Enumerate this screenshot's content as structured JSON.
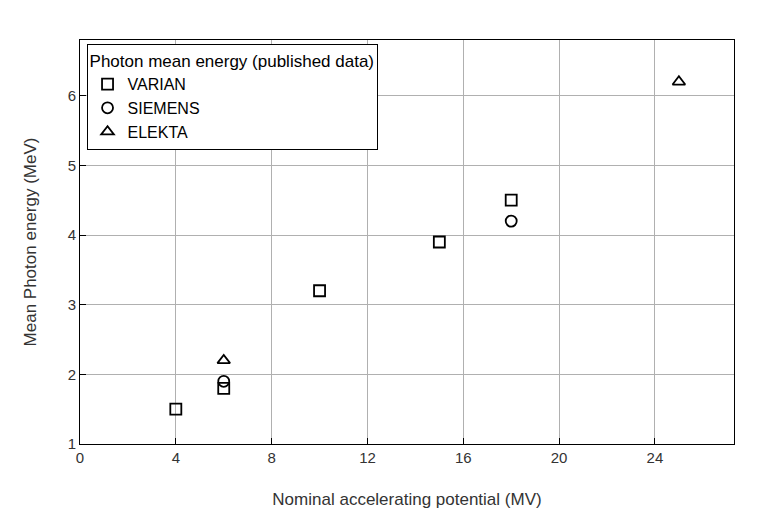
{
  "chart_data": {
    "type": "scatter",
    "x_label": "Nominal accelerating potential (MV)",
    "y_label": "Mean Photon energy (MeV)",
    "legend_title": "Photon mean energy (published data)",
    "legend": "upper left",
    "grid": true,
    "xlim": [
      0,
      27.3
    ],
    "ylim": [
      1,
      6.8
    ],
    "xticks": [
      0,
      4,
      8,
      12,
      16,
      20,
      24
    ],
    "yticks": [
      1,
      2,
      3,
      4,
      5,
      6
    ],
    "series": [
      {
        "name": "VARIAN",
        "color": "#000000",
        "marker": "square-open",
        "x": [
          4,
          6,
          10,
          15,
          18
        ],
        "values": [
          1.5,
          1.8,
          3.2,
          3.9,
          4.5
        ]
      },
      {
        "name": "SIEMENS",
        "color": "#000000",
        "marker": "circle-open",
        "x": [
          6,
          18
        ],
        "values": [
          1.9,
          4.2
        ]
      },
      {
        "name": "ELEKTA",
        "color": "#000000",
        "marker": "triangle-up-open",
        "x": [
          6,
          25
        ],
        "values": [
          2.2,
          6.2
        ]
      }
    ]
  }
}
